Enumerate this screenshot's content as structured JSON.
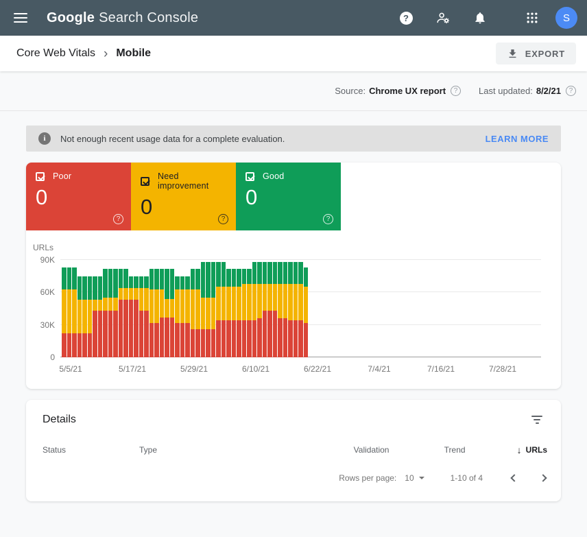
{
  "colors": {
    "topbar_bg": "#485963",
    "poor": "#DB4437",
    "need_improvement": "#F4B400",
    "good": "#0F9D58",
    "link_blue": "#4A8AF4",
    "avatar_blue": "#4C8BF5",
    "banner_bg": "#e0e0e0"
  },
  "glyphs": {
    "question": "?",
    "info": "i",
    "sort_arrow": "↓",
    "breadcrumb_sep": "›"
  },
  "topbar": {
    "logo_bold": "Google",
    "logo_rest": "Search Console",
    "avatar_letter": "S"
  },
  "breadcrumb": {
    "parent": "Core Web Vitals",
    "current": "Mobile",
    "export_label": "EXPORT"
  },
  "meta": {
    "source_label": "Source:",
    "source_value": "Chrome UX report",
    "updated_label": "Last updated:",
    "updated_value": "8/2/21"
  },
  "banner": {
    "text": "Not enough recent usage data for a complete evaluation.",
    "action": "LEARN MORE"
  },
  "tiles": [
    {
      "label": "Poor",
      "value": "0",
      "color": "#DB4437",
      "text_color": "#ffffff"
    },
    {
      "label": "Need improvement",
      "value": "0",
      "color": "#F4B400",
      "text_color": "#202124"
    },
    {
      "label": "Good",
      "value": "0",
      "color": "#0F9D58",
      "text_color": "#ffffff"
    }
  ],
  "chart_data": {
    "type": "bar",
    "stacked": true,
    "ylabel": "URLs",
    "values_unit": "thousands of URLs",
    "ylim": [
      0,
      90000
    ],
    "grid": true,
    "y_ticks": [
      {
        "v": 0,
        "label": "0"
      },
      {
        "v": 30,
        "label": "30K"
      },
      {
        "v": 60,
        "label": "60K"
      },
      {
        "v": 90,
        "label": "90K"
      }
    ],
    "x_ticks": [
      {
        "day": 0,
        "label": "5/5/21"
      },
      {
        "day": 12,
        "label": "5/17/21"
      },
      {
        "day": 24,
        "label": "5/29/21"
      },
      {
        "day": 36,
        "label": "6/10/21"
      },
      {
        "day": 48,
        "label": "6/22/21"
      },
      {
        "day": 60,
        "label": "7/4/21"
      },
      {
        "day": 72,
        "label": "7/16/21"
      },
      {
        "day": 84,
        "label": "7/28/21"
      }
    ],
    "dates": [
      "5/5/21",
      "5/6/21",
      "5/7/21",
      "5/8/21",
      "5/9/21",
      "5/10/21",
      "5/11/21",
      "5/12/21",
      "5/13/21",
      "5/14/21",
      "5/15/21",
      "5/16/21",
      "5/17/21",
      "5/18/21",
      "5/19/21",
      "5/20/21",
      "5/21/21",
      "5/22/21",
      "5/23/21",
      "5/24/21",
      "5/25/21",
      "5/26/21",
      "5/27/21",
      "5/28/21",
      "5/29/21",
      "5/30/21",
      "5/31/21",
      "6/1/21",
      "6/2/21",
      "6/3/21",
      "6/4/21",
      "6/5/21",
      "6/6/21",
      "6/7/21",
      "6/8/21",
      "6/9/21",
      "6/10/21",
      "6/11/21",
      "6/12/21",
      "6/13/21",
      "6/14/21",
      "6/15/21",
      "6/16/21",
      "6/17/21",
      "6/18/21",
      "6/19/21",
      "6/20/21",
      "6/21/21"
    ],
    "series": [
      {
        "name": "Poor",
        "color": "#DB4437",
        "values": [
          22,
          22,
          22,
          22,
          22,
          22,
          43,
          43,
          43,
          43,
          43,
          53,
          53,
          53,
          53,
          43,
          43,
          32,
          32,
          37,
          37,
          37,
          32,
          32,
          32,
          26,
          26,
          26,
          26,
          26,
          34,
          34,
          34,
          34,
          34,
          34,
          34,
          34,
          36,
          43,
          43,
          43,
          36,
          36,
          34,
          34,
          34,
          32
        ]
      },
      {
        "name": "Need improvement",
        "color": "#F4B400",
        "values": [
          41,
          41,
          41,
          31,
          31,
          31,
          10,
          10,
          12,
          12,
          12,
          11,
          11,
          11,
          11,
          21,
          21,
          31,
          31,
          26,
          17,
          17,
          31,
          31,
          31,
          37,
          37,
          29,
          29,
          29,
          31,
          31,
          31,
          31,
          31,
          34,
          34,
          34,
          32,
          25,
          25,
          25,
          32,
          32,
          34,
          34,
          34,
          33
        ]
      },
      {
        "name": "Good",
        "color": "#0F9D58",
        "values": [
          20,
          20,
          20,
          22,
          22,
          22,
          22,
          22,
          27,
          27,
          27,
          18,
          18,
          11,
          11,
          11,
          11,
          19,
          19,
          19,
          28,
          28,
          12,
          12,
          12,
          19,
          19,
          33,
          33,
          33,
          23,
          23,
          17,
          17,
          17,
          14,
          14,
          20,
          20,
          20,
          20,
          20,
          20,
          20,
          20,
          20,
          20,
          18
        ]
      }
    ]
  },
  "details": {
    "title": "Details",
    "columns": [
      "Status",
      "Type",
      "Validation",
      "Trend",
      "URLs"
    ],
    "sort_column": "URLs",
    "rows": [],
    "footer": {
      "rows_per_page_label": "Rows per page:",
      "rows_per_page_value": "10",
      "range": "1-10 of 4"
    }
  }
}
